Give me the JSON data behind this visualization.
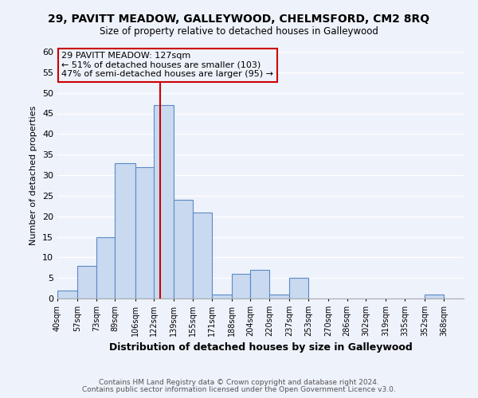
{
  "title": "29, PAVITT MEADOW, GALLEYWOOD, CHELMSFORD, CM2 8RQ",
  "subtitle": "Size of property relative to detached houses in Galleywood",
  "xlabel": "Distribution of detached houses by size in Galleywood",
  "ylabel": "Number of detached properties",
  "bin_labels": [
    "40sqm",
    "57sqm",
    "73sqm",
    "89sqm",
    "106sqm",
    "122sqm",
    "139sqm",
    "155sqm",
    "171sqm",
    "188sqm",
    "204sqm",
    "220sqm",
    "237sqm",
    "253sqm",
    "270sqm",
    "286sqm",
    "302sqm",
    "319sqm",
    "335sqm",
    "352sqm",
    "368sqm"
  ],
  "bin_edges": [
    40,
    57,
    73,
    89,
    106,
    122,
    139,
    155,
    171,
    188,
    204,
    220,
    237,
    253,
    270,
    286,
    302,
    319,
    335,
    352,
    368,
    385
  ],
  "counts": [
    2,
    8,
    15,
    33,
    32,
    47,
    24,
    21,
    1,
    6,
    7,
    1,
    5,
    0,
    0,
    0,
    0,
    0,
    0,
    1,
    0
  ],
  "bar_color": "#c8d9f0",
  "bar_edge_color": "#5b8ac6",
  "reference_line_x": 127,
  "reference_line_color": "#cc0000",
  "annotation_box_text": "29 PAVITT MEADOW: 127sqm\n← 51% of detached houses are smaller (103)\n47% of semi-detached houses are larger (95) →",
  "annotation_box_color": "#cc0000",
  "ylim": [
    0,
    60
  ],
  "yticks": [
    0,
    5,
    10,
    15,
    20,
    25,
    30,
    35,
    40,
    45,
    50,
    55,
    60
  ],
  "footer_line1": "Contains HM Land Registry data © Crown copyright and database right 2024.",
  "footer_line2": "Contains public sector information licensed under the Open Government Licence v3.0.",
  "background_color": "#eef2fb",
  "grid_color": "#ffffff"
}
